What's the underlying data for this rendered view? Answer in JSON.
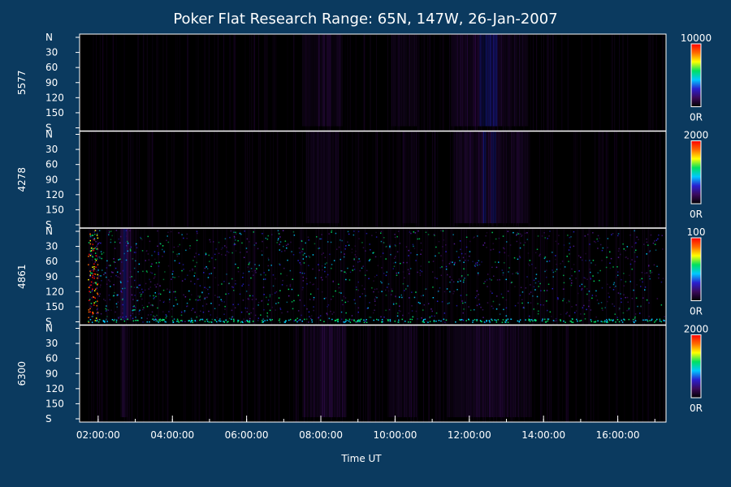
{
  "chart_data": {
    "type": "heatmap",
    "title": "Poker Flat Research Range: 65N, 147W, 26-Jan-2007",
    "xlabel": "Time UT",
    "x_ticks": [
      "02:00:00",
      "04:00:00",
      "06:00:00",
      "08:00:00",
      "10:00:00",
      "12:00:00",
      "14:00:00",
      "16:00:00"
    ],
    "x_range_hours": [
      1.5,
      17.3
    ],
    "y_ticks": [
      "N",
      "30",
      "60",
      "90",
      "120",
      "150",
      "S"
    ],
    "y_range_deg": [
      0,
      180
    ],
    "colormap": [
      "#000000",
      "#3a0a5a",
      "#2a1fd0",
      "#00c8ff",
      "#00e060",
      "#ffff00",
      "#ff6a00",
      "#ff0000"
    ],
    "panels": [
      {
        "wavelength": "5577",
        "cbar_max": "10000",
        "cbar_min": "0R",
        "bright_bands": [
          {
            "start": 7.5,
            "end": 8.6,
            "intensity": 0.35
          },
          {
            "start": 9.9,
            "end": 10.6,
            "intensity": 0.3
          },
          {
            "start": 11.5,
            "end": 12.1,
            "intensity": 0.35
          },
          {
            "start": 12.1,
            "end": 12.9,
            "intensity": 0.55
          },
          {
            "start": 12.9,
            "end": 13.6,
            "intensity": 0.3
          }
        ]
      },
      {
        "wavelength": "4278",
        "cbar_max": "2000",
        "cbar_min": "0R",
        "bright_bands": [
          {
            "start": 7.6,
            "end": 8.5,
            "intensity": 0.3
          },
          {
            "start": 10.2,
            "end": 10.6,
            "intensity": 0.2
          },
          {
            "start": 11.6,
            "end": 12.2,
            "intensity": 0.4
          },
          {
            "start": 12.2,
            "end": 12.9,
            "intensity": 0.6
          },
          {
            "start": 12.9,
            "end": 13.6,
            "intensity": 0.3
          }
        ]
      },
      {
        "wavelength": "4861",
        "cbar_max": "100",
        "cbar_min": "0R",
        "bright_bands": [
          {
            "start": 2.6,
            "end": 2.9,
            "intensity": 0.9
          }
        ]
      },
      {
        "wavelength": "6300",
        "cbar_max": "2000",
        "cbar_min": "0R",
        "bright_bands": [
          {
            "start": 2.6,
            "end": 2.8,
            "intensity": 0.4
          },
          {
            "start": 7.5,
            "end": 8.7,
            "intensity": 0.45
          },
          {
            "start": 9.8,
            "end": 10.6,
            "intensity": 0.3
          },
          {
            "start": 11.4,
            "end": 13.7,
            "intensity": 0.35
          }
        ]
      }
    ]
  }
}
